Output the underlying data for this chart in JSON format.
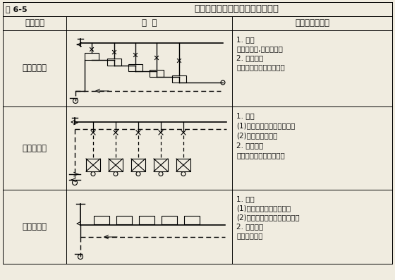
{
  "title": "高压蒸汽采暖系统常用的几种型式",
  "table_label": "表 6-5",
  "col_headers": [
    "型式名称",
    "图  式",
    "特点及适用范围"
  ],
  "rows": [
    {
      "name": "上供下回式",
      "features": "1. 特点\n常用的做法,可节约地沟\n2. 适用范围\n单层公用建筑或工业厂房"
    },
    {
      "name": "上供上回式",
      "features": "1. 特点\n(1)除节省地沟外检修方便。\n(2)系统泄水不便。\n2. 适用范围\n工业厂房暖风机供暖系统"
    },
    {
      "name": "水平串联式",
      "features": "1. 特点\n(1)构造最简单、造价低。\n(2)散热器接口处易漏水漏汽。\n2. 适用范围\n单层公用建筑"
    }
  ],
  "bg_color": "#f0ece0",
  "line_color": "#000000",
  "text_color": "#111111"
}
